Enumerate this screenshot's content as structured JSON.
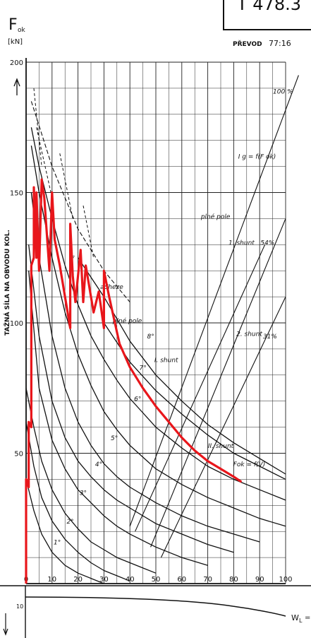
{
  "header": {
    "title_fragment": "T 478.3",
    "ratio_label": "PŘEVOD",
    "ratio_value": "77:16"
  },
  "chart_data": {
    "type": "line",
    "title": "",
    "xlabel": "",
    "ylabel": "TAŽNÁ SÍLA NA OBVODU KOL.",
    "y_symbol": "F",
    "y_symbol_sub": "ok",
    "y_unit": "[kN]",
    "xlim": [
      0,
      100
    ],
    "ylim": [
      0,
      200
    ],
    "x_ticks": [
      0,
      10,
      20,
      30,
      40,
      50,
      60,
      70,
      80,
      90,
      100
    ],
    "x_tick_labels": [
      "0",
      "10",
      "20",
      "30",
      "40",
      "50",
      "60",
      "70",
      "80",
      "90",
      "100"
    ],
    "y_ticks": [
      50,
      100,
      150,
      200
    ],
    "y_tick_labels": [
      "50",
      "100",
      "150",
      "200"
    ],
    "grid": true,
    "series": [
      {
        "name": "1°",
        "color": "#111111",
        "x": [
          0,
          3,
          6,
          10,
          15,
          20,
          25,
          30
        ],
        "y": [
          40,
          28,
          19,
          12,
          7,
          4,
          2,
          0
        ]
      },
      {
        "name": "2°",
        "color": "#111111",
        "x": [
          0,
          3,
          6,
          10,
          15,
          20,
          25,
          30,
          35,
          40
        ],
        "y": [
          62,
          45,
          33,
          24,
          17,
          12,
          8,
          5,
          3,
          1
        ]
      },
      {
        "name": "3°",
        "color": "#111111",
        "x": [
          0,
          3,
          6,
          10,
          15,
          20,
          25,
          30,
          35,
          40,
          45,
          50
        ],
        "y": [
          75,
          60,
          47,
          36,
          27,
          21,
          16,
          13,
          10,
          8,
          6,
          4
        ]
      },
      {
        "name": "4°",
        "color": "#111111",
        "x": [
          1,
          5,
          10,
          15,
          20,
          25,
          30,
          35,
          40,
          50,
          60,
          70
        ],
        "y": [
          120,
          75,
          55,
          44,
          36,
          31,
          26,
          22,
          19,
          14,
          10,
          7
        ]
      },
      {
        "name": "5°",
        "color": "#111111",
        "x": [
          1,
          5,
          10,
          15,
          20,
          25,
          30,
          35,
          40,
          50,
          60,
          70,
          80
        ],
        "y": [
          130,
          95,
          70,
          56,
          47,
          41,
          36,
          32,
          29,
          23,
          19,
          15,
          12
        ]
      },
      {
        "name": "6°",
        "color": "#111111",
        "x": [
          2,
          5,
          10,
          15,
          20,
          25,
          30,
          35,
          40,
          50,
          60,
          70,
          80,
          90
        ],
        "y": [
          150,
          125,
          95,
          75,
          62,
          53,
          46,
          41,
          37,
          31,
          26,
          22,
          19,
          16
        ]
      },
      {
        "name": "7°",
        "color": "#111111",
        "x": [
          2,
          5,
          10,
          15,
          20,
          25,
          30,
          35,
          40,
          50,
          60,
          70,
          80,
          90,
          100
        ],
        "y": [
          168,
          150,
          125,
          104,
          88,
          76,
          66,
          59,
          53,
          44,
          38,
          33,
          29,
          25,
          22
        ]
      },
      {
        "name": "8°",
        "color": "#111111",
        "x": [
          2,
          5,
          10,
          15,
          20,
          25,
          30,
          35,
          40,
          50,
          60,
          70,
          80,
          90,
          100
        ],
        "y": [
          175,
          160,
          140,
          122,
          107,
          95,
          86,
          78,
          71,
          60,
          52,
          45,
          40,
          36,
          32
        ]
      },
      {
        "name": "",
        "color": "#111111",
        "x": [
          20,
          30,
          40,
          50,
          60,
          70,
          80,
          90,
          100
        ],
        "y": [
          125,
          110,
          93,
          80,
          70,
          61,
          54,
          48,
          42
        ]
      },
      {
        "name": "",
        "color": "#111111",
        "x": [
          30,
          40,
          50,
          60,
          70,
          80,
          90,
          100
        ],
        "y": [
          100,
          85,
          74,
          65,
          57,
          50,
          45,
          40
        ]
      }
    ],
    "envelope": {
      "name": "Fok = f(V)",
      "color": "#e8161b",
      "x": [
        0,
        0,
        1,
        1,
        2,
        2,
        3,
        3,
        4,
        4,
        5,
        6,
        7,
        9,
        10,
        11,
        13,
        17,
        17,
        18,
        19,
        21,
        22,
        23,
        26,
        28,
        30,
        30,
        32,
        34,
        36,
        40,
        45,
        50,
        55,
        60,
        65,
        70,
        75,
        80,
        83
      ],
      "y": [
        0,
        40,
        37,
        62,
        60,
        122,
        125,
        152,
        125,
        150,
        120,
        155,
        148,
        120,
        150,
        132,
        122,
        98,
        138,
        118,
        108,
        128,
        108,
        122,
        104,
        112,
        98,
        120,
        110,
        101,
        92,
        83,
        75,
        68,
        62,
        56,
        51,
        47,
        44,
        41,
        39
      ]
    },
    "dashed_adhesion": {
      "name": "adheze",
      "x": [
        2,
        10,
        20,
        30,
        40
      ],
      "y": [
        185,
        160,
        136,
        120,
        108
      ]
    },
    "dashed_short": [
      {
        "x": [
          3,
          6
        ],
        "y": [
          190,
          160
        ]
      },
      {
        "x": [
          4,
          10
        ],
        "y": [
          175,
          148
        ]
      },
      {
        "x": [
          13,
          18
        ],
        "y": [
          165,
          140
        ]
      },
      {
        "x": [
          22,
          26
        ],
        "y": [
          145,
          125
        ]
      }
    ],
    "excitation_lines": [
      {
        "name": "100 %",
        "label_top": "I g = f(F ok)",
        "x": [
          40,
          105
        ],
        "y": [
          22,
          195
        ]
      },
      {
        "name": "plné pole",
        "x": [
          42,
          92
        ],
        "y": [
          20,
          130
        ]
      },
      {
        "name": "1. shunt 54%",
        "x": [
          48,
          100
        ],
        "y": [
          14,
          140
        ]
      },
      {
        "name": "2. shunt 31%",
        "x": [
          52,
          100
        ],
        "y": [
          10,
          110
        ]
      }
    ],
    "annotations": [
      {
        "text": "1°",
        "x": 12,
        "y": 15
      },
      {
        "text": "2°",
        "x": 17,
        "y": 23
      },
      {
        "text": "3°",
        "x": 22,
        "y": 34
      },
      {
        "text": "4°",
        "x": 28,
        "y": 45
      },
      {
        "text": "5°",
        "x": 34,
        "y": 55
      },
      {
        "text": "6°",
        "x": 43,
        "y": 70
      },
      {
        "text": "7°",
        "x": 45,
        "y": 82
      },
      {
        "text": "8°",
        "x": 48,
        "y": 94
      },
      {
        "text": "F",
        "x": 18,
        "y": 124
      },
      {
        "text": "adheze",
        "x": 33,
        "y": 113
      },
      {
        "text": "plné pole",
        "x": 39,
        "y": 100
      },
      {
        "text": "I. shunt",
        "x": 54,
        "y": 85
      },
      {
        "text": "II. shunt",
        "x": 75,
        "y": 52
      },
      {
        "text": "Fok = f(V)",
        "x": 86,
        "y": 45
      },
      {
        "text": "1. shunt",
        "x": 83,
        "y": 130
      },
      {
        "text": "54%",
        "x": 93,
        "y": 130
      },
      {
        "text": "plné pole",
        "x": 73,
        "y": 140
      },
      {
        "text": "2. shunt",
        "x": 86,
        "y": 95
      },
      {
        "text": "31%",
        "x": 94,
        "y": 94
      },
      {
        "text": "I g = f(F ok)",
        "x": 89,
        "y": 163
      },
      {
        "text": "100 %",
        "x": 99,
        "y": 188
      }
    ]
  },
  "secondary_panel": {
    "tick_label": "10",
    "x_symbol": "W",
    "x_symbol_sub": "L",
    "x_suffix": "="
  }
}
